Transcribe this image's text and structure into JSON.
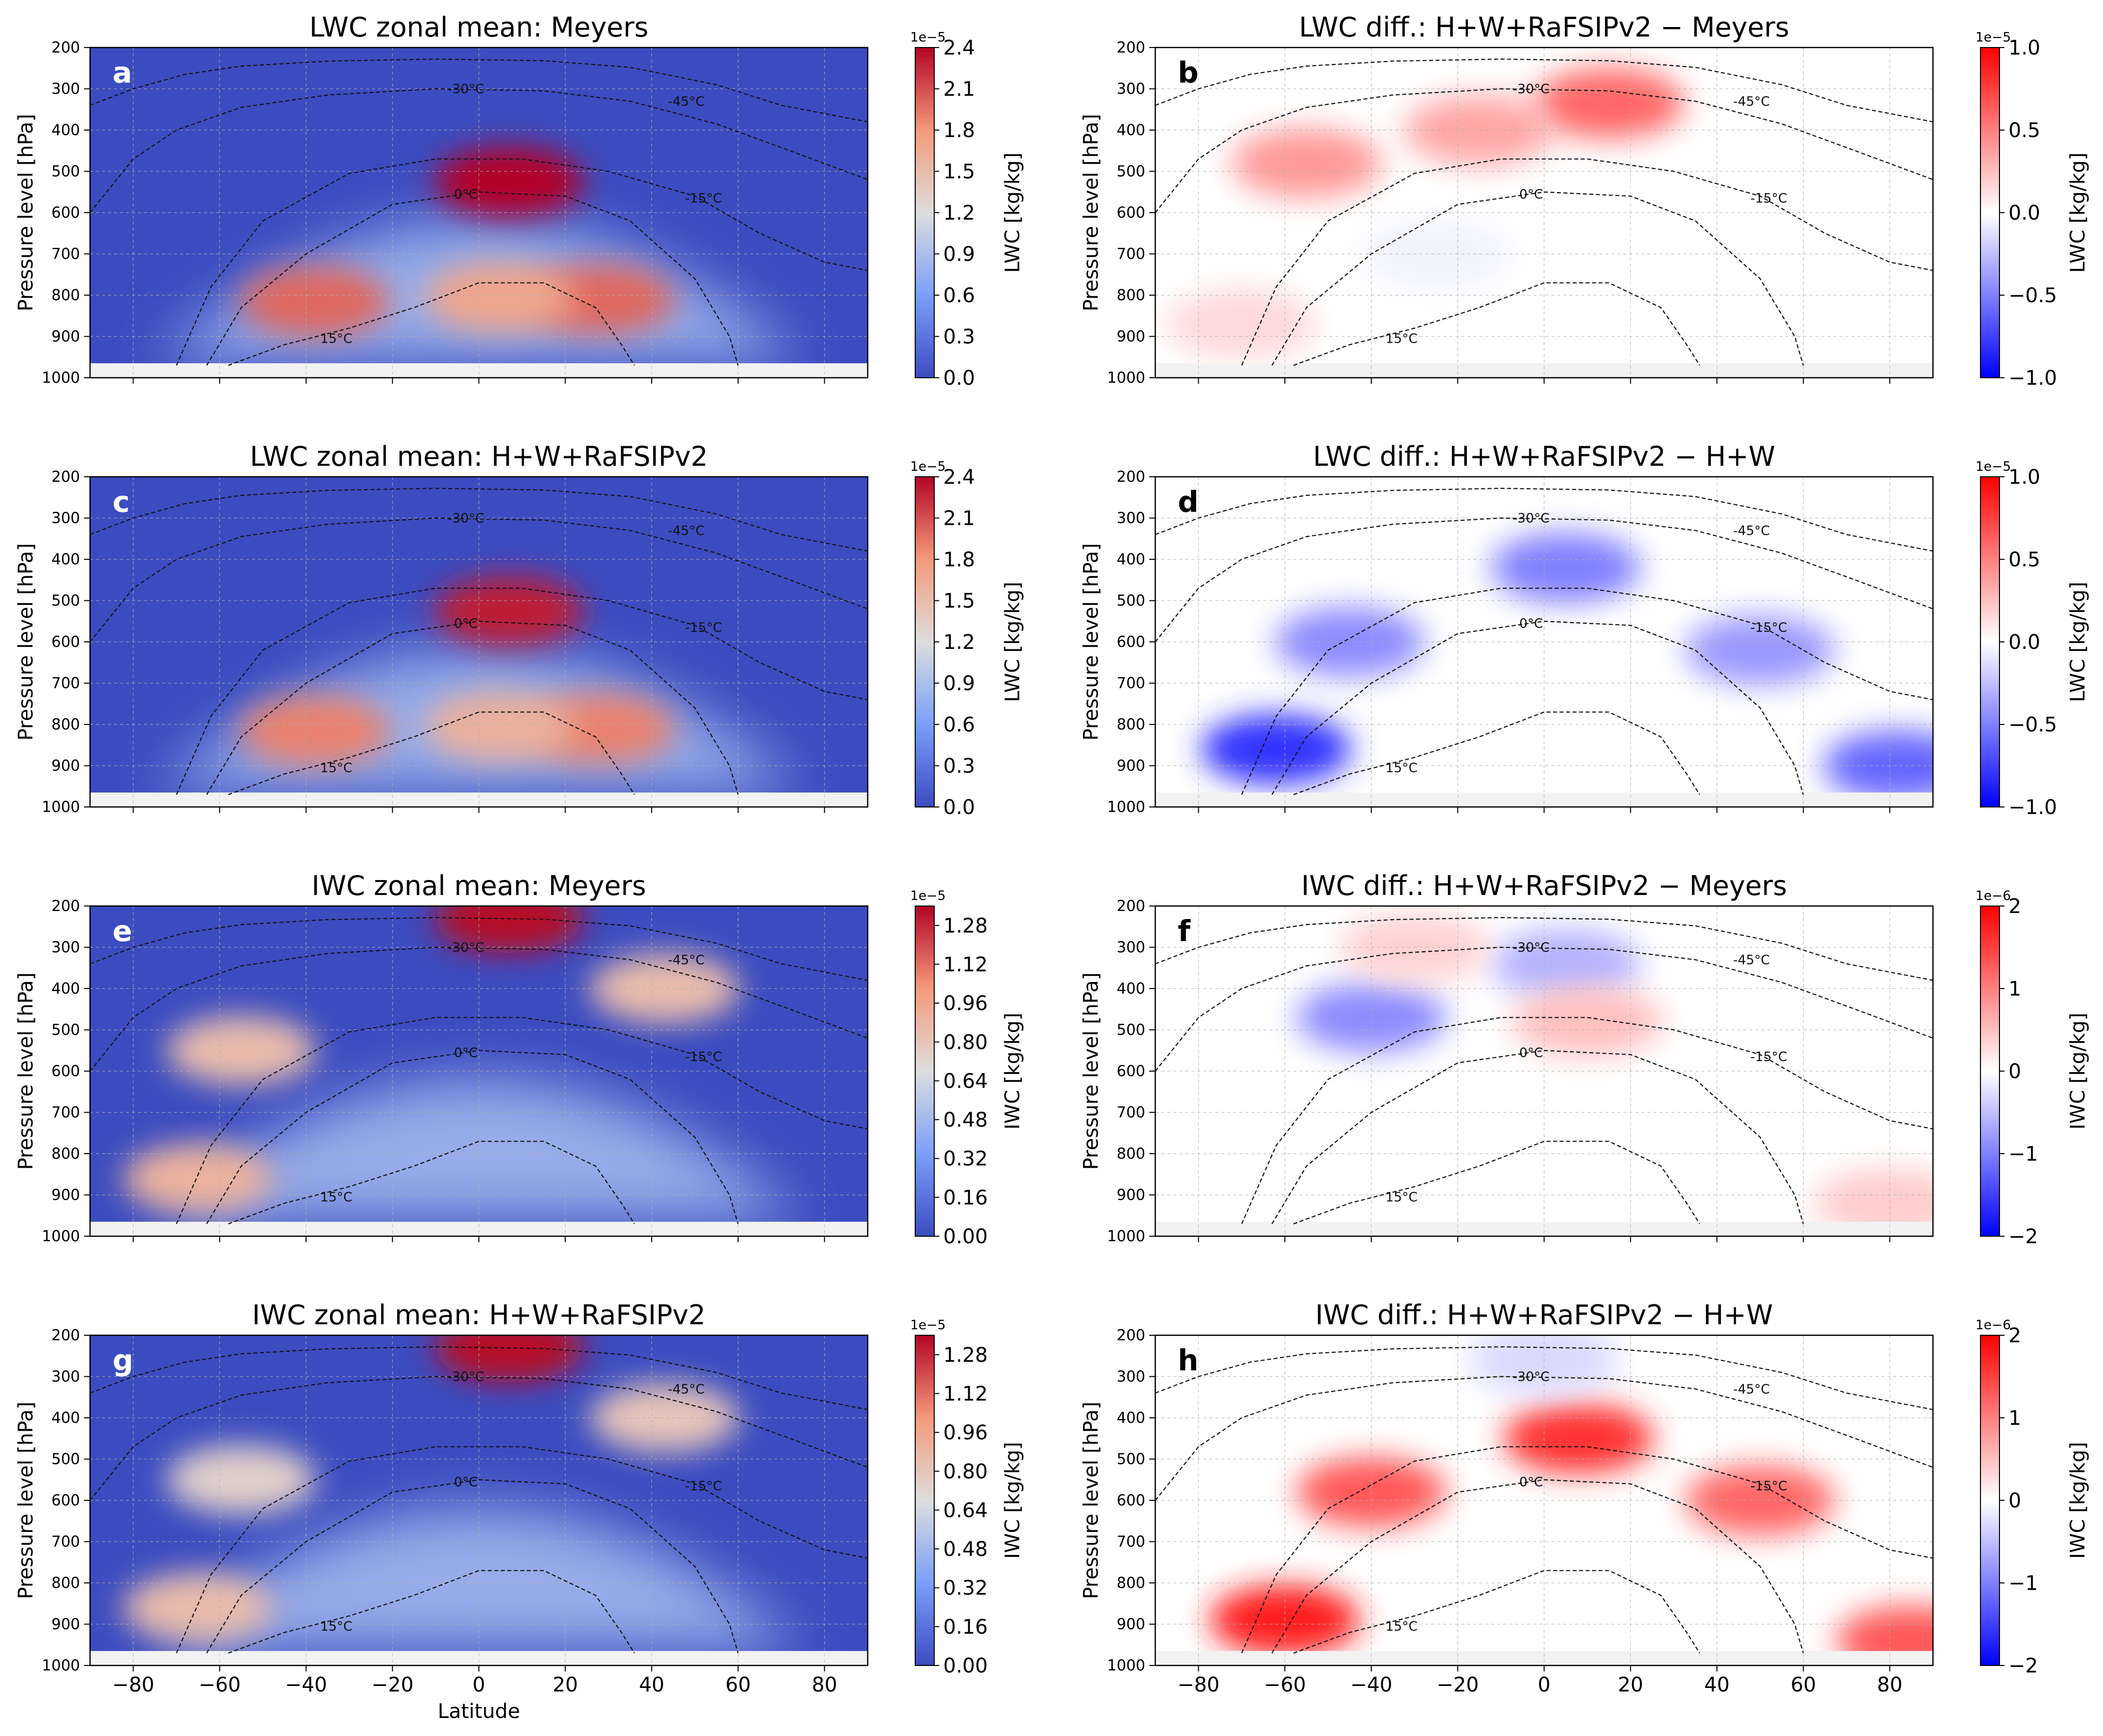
{
  "figure": {
    "shared": {
      "x_ticks": [
        -80,
        -60,
        -40,
        -20,
        0,
        20,
        40,
        60,
        80
      ],
      "y_ticks": [
        200,
        300,
        400,
        500,
        600,
        700,
        800,
        900,
        1000
      ],
      "xlim": [
        -90,
        90
      ],
      "ylim": [
        1000,
        200
      ],
      "ylabel": "Pressure level [hPa]",
      "xlabel": "Latitude",
      "contour_labels": [
        "-45°C",
        "-30°C",
        "-15°C",
        "0°C",
        "15°C"
      ]
    },
    "colors": {
      "coolwarm_low": "#3b4cc0",
      "coolwarm_mid": "#dddddd",
      "coolwarm_high": "#b40426",
      "bwr_low": "#0000ff",
      "bwr_mid": "#ffffff",
      "bwr_high": "#ff0000"
    }
  },
  "chart_data": [
    {
      "panel_letter": "a",
      "type": "heatmap",
      "title": "LWC zonal mean: Meyers",
      "colorbar": {
        "label": "LWC [kg/kg]",
        "exponent": "1e−5",
        "ticks": [
          "2.4",
          "2.1",
          "1.8",
          "1.5",
          "1.2",
          "0.9",
          "0.6",
          "0.3",
          "0.0"
        ],
        "range": [
          0,
          2.4
        ],
        "colormap": "coolwarm"
      },
      "features": [
        {
          "lat": -38,
          "p": 815,
          "value": 2.0
        },
        {
          "lat": 28,
          "p": 810,
          "value": 2.0
        },
        {
          "lat": 7,
          "p": 525,
          "value": 2.4
        },
        {
          "lat": 5,
          "p": 805,
          "value": 1.7
        }
      ]
    },
    {
      "panel_letter": "b",
      "type": "heatmap",
      "title": "LWC diff.: H+W+RaFSIPv2 − Meyers",
      "colorbar": {
        "label": "LWC [kg/kg]",
        "exponent": "1e−5",
        "ticks": [
          "1.0",
          "0.5",
          "0.0",
          "−0.5",
          "−1.0"
        ],
        "range": [
          -1,
          1
        ],
        "colormap": "bwr"
      },
      "features": [
        {
          "lat": 15,
          "p": 335,
          "value": 0.6
        },
        {
          "lat": -55,
          "p": 480,
          "value": 0.4
        },
        {
          "lat": -15,
          "p": 400,
          "value": 0.35
        },
        {
          "lat": -70,
          "p": 870,
          "value": 0.15
        },
        {
          "lat": -25,
          "p": 700,
          "value": -0.05
        }
      ]
    },
    {
      "panel_letter": "c",
      "type": "heatmap",
      "title": "LWC zonal mean: H+W+RaFSIPv2",
      "colorbar": {
        "label": "LWC [kg/kg]",
        "exponent": "1e−5",
        "ticks": [
          "2.4",
          "2.1",
          "1.8",
          "1.5",
          "1.2",
          "0.9",
          "0.6",
          "0.3",
          "0.0"
        ],
        "range": [
          0,
          2.4
        ],
        "colormap": "coolwarm"
      },
      "features": [
        {
          "lat": -38,
          "p": 815,
          "value": 1.9
        },
        {
          "lat": 28,
          "p": 810,
          "value": 1.9
        },
        {
          "lat": 7,
          "p": 525,
          "value": 2.3
        },
        {
          "lat": 5,
          "p": 805,
          "value": 1.6
        }
      ]
    },
    {
      "panel_letter": "d",
      "type": "heatmap",
      "title": "LWC diff.: H+W+RaFSIPv2 − H+W",
      "colorbar": {
        "label": "LWC [kg/kg]",
        "exponent": "1e−5",
        "ticks": [
          "1.0",
          "0.5",
          "0.0",
          "−0.5",
          "−1.0"
        ],
        "range": [
          -1,
          1
        ],
        "colormap": "bwr"
      },
      "features": [
        {
          "lat": -62,
          "p": 860,
          "value": -0.8
        },
        {
          "lat": 5,
          "p": 420,
          "value": -0.5
        },
        {
          "lat": 82,
          "p": 900,
          "value": -0.6
        },
        {
          "lat": -45,
          "p": 600,
          "value": -0.45
        },
        {
          "lat": 50,
          "p": 620,
          "value": -0.4
        }
      ]
    },
    {
      "panel_letter": "e",
      "type": "heatmap",
      "title": "IWC zonal mean: Meyers",
      "colorbar": {
        "label": "IWC [kg/kg]",
        "exponent": "1e−5",
        "ticks": [
          "1.28",
          "1.12",
          "0.96",
          "0.80",
          "0.64",
          "0.48",
          "0.32",
          "0.16",
          "0.00"
        ],
        "range": [
          0,
          1.36
        ],
        "colormap": "coolwarm"
      },
      "features": [
        {
          "lat": 7,
          "p": 230,
          "value": 1.35
        },
        {
          "lat": -55,
          "p": 550,
          "value": 0.85
        },
        {
          "lat": -65,
          "p": 860,
          "value": 0.9
        },
        {
          "lat": 43,
          "p": 400,
          "value": 0.85
        }
      ]
    },
    {
      "panel_letter": "f",
      "type": "heatmap",
      "title": "IWC diff.: H+W+RaFSIPv2 − Meyers",
      "colorbar": {
        "label": "IWC [kg/kg]",
        "exponent": "1e−6",
        "ticks": [
          "2",
          "1",
          "0",
          "−1",
          "−2"
        ],
        "range": [
          -2,
          2
        ],
        "colormap": "bwr"
      },
      "features": [
        {
          "lat": -40,
          "p": 470,
          "value": -0.9
        },
        {
          "lat": 5,
          "p": 340,
          "value": -0.6
        },
        {
          "lat": 10,
          "p": 480,
          "value": 0.5
        },
        {
          "lat": -30,
          "p": 300,
          "value": 0.35
        },
        {
          "lat": 80,
          "p": 920,
          "value": 0.4
        }
      ]
    },
    {
      "panel_letter": "g",
      "type": "heatmap",
      "title": "IWC zonal mean: H+W+RaFSIPv2",
      "colorbar": {
        "label": "IWC [kg/kg]",
        "exponent": "1e−5",
        "ticks": [
          "1.28",
          "1.12",
          "0.96",
          "0.80",
          "0.64",
          "0.48",
          "0.32",
          "0.16",
          "0.00"
        ],
        "range": [
          0,
          1.36
        ],
        "colormap": "coolwarm"
      },
      "features": [
        {
          "lat": 7,
          "p": 230,
          "value": 1.35
        },
        {
          "lat": -55,
          "p": 550,
          "value": 0.75
        },
        {
          "lat": -65,
          "p": 860,
          "value": 0.85
        },
        {
          "lat": 43,
          "p": 400,
          "value": 0.8
        }
      ]
    },
    {
      "panel_letter": "h",
      "type": "heatmap",
      "title": "IWC diff.: H+W+RaFSIPv2 − H+W",
      "colorbar": {
        "label": "IWC [kg/kg]",
        "exponent": "1e−6",
        "ticks": [
          "2",
          "1",
          "0",
          "−1",
          "−2"
        ],
        "range": [
          -2,
          2
        ],
        "colormap": "bwr"
      },
      "features": [
        {
          "lat": -60,
          "p": 890,
          "value": 1.8
        },
        {
          "lat": 8,
          "p": 450,
          "value": 1.6
        },
        {
          "lat": -40,
          "p": 580,
          "value": 1.3
        },
        {
          "lat": 50,
          "p": 600,
          "value": 1.2
        },
        {
          "lat": 85,
          "p": 940,
          "value": 1.3
        },
        {
          "lat": 0,
          "p": 260,
          "value": -0.3
        }
      ]
    }
  ]
}
